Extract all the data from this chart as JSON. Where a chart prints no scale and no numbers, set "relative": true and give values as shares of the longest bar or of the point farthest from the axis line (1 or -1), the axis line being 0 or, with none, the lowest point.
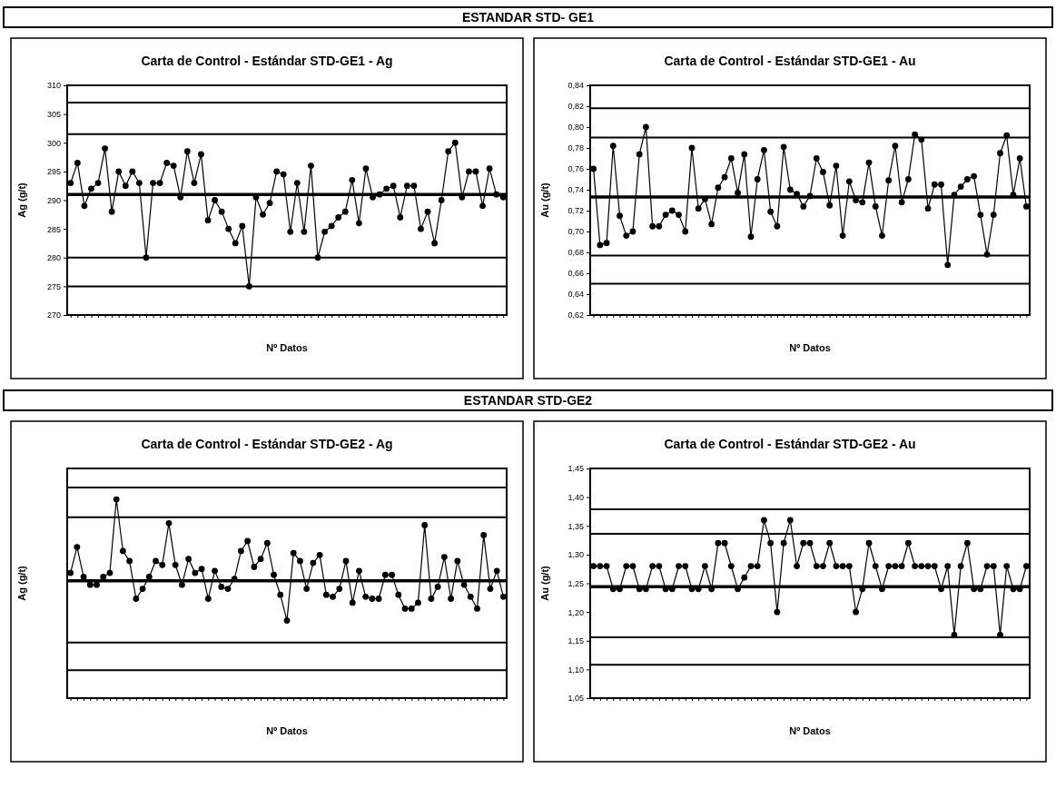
{
  "chart_data": [
    {
      "type": "line",
      "title": "Carta de Control  - Estándar STD-GE1  - Ag",
      "ylabel": "Ag (g/t)",
      "xlabel": "Nº Datos",
      "annotations": [
        "ESTANDAR STD- GE1"
      ],
      "marker": "circle",
      "line_style": "solid",
      "categories": [
        null,
        null,
        null,
        null,
        null,
        null,
        null,
        null,
        null,
        null,
        null,
        null,
        null,
        null,
        null,
        null,
        null,
        null,
        null,
        null,
        null,
        null,
        null,
        null,
        null,
        null,
        null,
        null,
        null,
        null,
        null,
        null,
        null,
        null,
        null,
        null,
        null,
        null,
        null,
        null,
        null,
        null,
        null,
        null,
        null,
        null,
        null,
        null,
        null,
        null,
        null,
        null,
        null,
        null,
        null,
        null,
        null,
        null,
        null,
        null,
        null,
        null,
        null,
        null
      ],
      "series": [
        {
          "color": "#000000",
          "values": [
            293,
            296.5,
            289,
            292,
            293,
            299,
            288,
            295,
            292.5,
            295,
            293,
            280,
            293,
            293,
            296.5,
            296,
            290.5,
            298.5,
            293,
            298,
            286.5,
            290,
            288,
            285,
            282.5,
            285.5,
            275,
            290.5,
            287.5,
            289.5,
            295,
            294.5,
            284.5,
            293,
            284.5,
            296,
            280,
            284.5,
            285.5,
            287,
            288,
            293.5,
            286,
            295.5,
            290.5,
            291,
            292,
            292.5,
            287,
            292.5,
            292.5,
            285,
            288,
            282.5,
            290,
            298.5,
            300,
            290.5,
            295,
            295,
            289,
            295.5,
            291,
            290.5
          ]
        }
      ],
      "ylim": [
        270,
        310
      ],
      "yticks": [
        270,
        275,
        280,
        285,
        290,
        295,
        300,
        305,
        310
      ],
      "ref_lines": [
        {
          "axis": "y",
          "value": 307,
          "color": "#000000"
        },
        {
          "axis": "y",
          "value": 301.5,
          "color": "#000000"
        },
        {
          "axis": "y",
          "value": 291,
          "color": "#000000"
        },
        {
          "axis": "y",
          "value": 280,
          "color": "#000000"
        },
        {
          "axis": "y",
          "value": 275,
          "color": "#000000"
        }
      ]
    },
    {
      "type": "line",
      "title": "Carta de Control - Estándar STD-GE1  - Au",
      "ylabel": "Au (g/t)",
      "xlabel": "Nº Datos",
      "marker": "circle",
      "line_style": "solid",
      "categories": [
        null,
        null,
        null,
        null,
        null,
        null,
        null,
        null,
        null,
        null,
        null,
        null,
        null,
        null,
        null,
        null,
        null,
        null,
        null,
        null,
        null,
        null,
        null,
        null,
        null,
        null,
        null,
        null,
        null,
        null,
        null,
        null,
        null,
        null,
        null,
        null,
        null,
        null,
        null,
        null,
        null,
        null,
        null,
        null,
        null,
        null,
        null,
        null,
        null,
        null,
        null,
        null,
        null,
        null,
        null,
        null,
        null,
        null,
        null,
        null,
        null,
        null,
        null,
        null,
        null,
        null,
        null
      ],
      "series": [
        {
          "color": "#000000",
          "values": [
            0.76,
            0.687,
            0.689,
            0.782,
            0.715,
            0.696,
            0.7,
            0.774,
            0.8,
            0.705,
            0.705,
            0.716,
            0.72,
            0.716,
            0.7,
            0.78,
            0.722,
            0.731,
            0.707,
            0.742,
            0.752,
            0.77,
            0.737,
            0.774,
            0.695,
            0.75,
            0.778,
            0.719,
            0.705,
            0.781,
            0.74,
            0.736,
            0.724,
            0.734,
            0.77,
            0.757,
            0.725,
            0.763,
            0.696,
            0.748,
            0.73,
            0.728,
            0.766,
            0.724,
            0.696,
            0.749,
            0.782,
            0.728,
            0.75,
            0.793,
            0.788,
            0.722,
            0.745,
            0.745,
            0.668,
            0.735,
            0.743,
            0.75,
            0.753,
            0.716,
            0.678,
            0.716,
            0.775,
            0.792,
            0.735,
            0.77,
            0.724
          ]
        }
      ],
      "ylim": [
        0.62,
        0.84
      ],
      "yticks": [
        {
          "value": 0.62,
          "label": "0,62"
        },
        {
          "value": 0.64,
          "label": "0,64"
        },
        {
          "value": 0.66,
          "label": "0,66"
        },
        {
          "value": 0.68,
          "label": "0,68"
        },
        {
          "value": 0.7,
          "label": "0,70"
        },
        {
          "value": 0.72,
          "label": "0,72"
        },
        {
          "value": 0.74,
          "label": "0,74"
        },
        {
          "value": 0.76,
          "label": "0,76"
        },
        {
          "value": 0.78,
          "label": "0,78"
        },
        {
          "value": 0.8,
          "label": "0,80"
        },
        {
          "value": 0.82,
          "label": "0,82"
        },
        {
          "value": 0.84,
          "label": "0,84"
        }
      ],
      "ref_lines": [
        {
          "axis": "y",
          "value": 0.818,
          "color": "#000000"
        },
        {
          "axis": "y",
          "value": 0.79,
          "color": "#000000"
        },
        {
          "axis": "y",
          "value": 0.733,
          "color": "#000000"
        },
        {
          "axis": "y",
          "value": 0.677,
          "color": "#000000"
        },
        {
          "axis": "y",
          "value": 0.65,
          "color": "#000000"
        }
      ]
    },
    {
      "type": "line",
      "title": "Carta de Control - Estándar STD-GE2 - Ag",
      "ylabel": "Ag (g/t)",
      "xlabel": "Nº Datos",
      "annotations": [
        "ESTANDAR STD-GE2"
      ],
      "marker": "circle",
      "line_style": "solid",
      "relative": true,
      "categories": [
        null,
        null,
        null,
        null,
        null,
        null,
        null,
        null,
        null,
        null,
        null,
        null,
        null,
        null,
        null,
        null,
        null,
        null,
        null,
        null,
        null,
        null,
        null,
        null,
        null,
        null,
        null,
        null,
        null,
        null,
        null,
        null,
        null,
        null,
        null,
        null,
        null,
        null,
        null,
        null,
        null,
        null,
        null,
        null,
        null,
        null,
        null,
        null,
        null,
        null,
        null,
        null,
        null,
        null,
        null,
        null,
        null,
        null,
        null,
        null,
        null,
        null,
        null,
        null,
        null,
        null,
        null
      ],
      "series": [
        {
          "color": "#000000",
          "values": [
            0.63,
            0.76,
            0.61,
            0.57,
            0.57,
            0.61,
            0.63,
            1,
            0.74,
            0.69,
            0.5,
            0.55,
            0.61,
            0.69,
            0.67,
            0.88,
            0.67,
            0.57,
            0.7,
            0.63,
            0.65,
            0.5,
            0.64,
            0.56,
            0.55,
            0.6,
            0.74,
            0.79,
            0.66,
            0.7,
            0.78,
            0.62,
            0.52,
            0.39,
            0.73,
            0.69,
            0.55,
            0.68,
            0.72,
            0.52,
            0.51,
            0.55,
            0.69,
            0.48,
            0.64,
            0.51,
            0.5,
            0.5,
            0.62,
            0.62,
            0.52,
            0.45,
            0.45,
            0.48,
            0.87,
            0.5,
            0.56,
            0.71,
            0.5,
            0.69,
            0.57,
            0.51,
            0.45,
            0.82,
            0.55,
            0.64,
            0.51
          ]
        }
      ],
      "ref_lines": [
        {
          "axis": "y",
          "value": 1.06,
          "color": "#000000"
        },
        {
          "axis": "y",
          "value": 0.91,
          "color": "#000000"
        },
        {
          "axis": "y",
          "value": 0.59,
          "color": "#000000"
        },
        {
          "axis": "y",
          "value": 0.28,
          "color": "#000000"
        },
        {
          "axis": "y",
          "value": 0.14,
          "color": "#000000"
        }
      ]
    },
    {
      "type": "line",
      "title": "Carta de Control - Estándar STD-GE2 - Au",
      "ylabel": "Au (g/t)",
      "xlabel": "Nº Datos",
      "marker": "circle",
      "line_style": "solid",
      "categories": [
        null,
        null,
        null,
        null,
        null,
        null,
        null,
        null,
        null,
        null,
        null,
        null,
        null,
        null,
        null,
        null,
        null,
        null,
        null,
        null,
        null,
        null,
        null,
        null,
        null,
        null,
        null,
        null,
        null,
        null,
        null,
        null,
        null,
        null,
        null,
        null,
        null,
        null,
        null,
        null,
        null,
        null,
        null,
        null,
        null,
        null,
        null,
        null,
        null,
        null,
        null,
        null,
        null,
        null,
        null,
        null,
        null,
        null,
        null,
        null,
        null,
        null,
        null,
        null,
        null,
        null,
        null
      ],
      "series": [
        {
          "color": "#000000",
          "values": [
            1.28,
            1.28,
            1.28,
            1.24,
            1.24,
            1.28,
            1.28,
            1.24,
            1.24,
            1.28,
            1.28,
            1.24,
            1.24,
            1.28,
            1.28,
            1.24,
            1.24,
            1.28,
            1.24,
            1.32,
            1.32,
            1.28,
            1.24,
            1.26,
            1.28,
            1.28,
            1.36,
            1.32,
            1.2,
            1.32,
            1.36,
            1.28,
            1.32,
            1.32,
            1.28,
            1.28,
            1.32,
            1.28,
            1.28,
            1.28,
            1.2,
            1.24,
            1.32,
            1.28,
            1.24,
            1.28,
            1.28,
            1.28,
            1.32,
            1.28,
            1.28,
            1.28,
            1.28,
            1.24,
            1.28,
            1.16,
            1.28,
            1.32,
            1.24,
            1.24,
            1.28,
            1.28,
            1.16,
            1.28,
            1.24,
            1.24,
            1.28
          ]
        }
      ],
      "ylim": [
        1.05,
        1.45
      ],
      "yticks": [
        {
          "value": 1.05,
          "label": "1,05"
        },
        {
          "value": 1.1,
          "label": "1,10"
        },
        {
          "value": 1.15,
          "label": "1,15"
        },
        {
          "value": 1.2,
          "label": "1,20"
        },
        {
          "value": 1.25,
          "label": "1,25"
        },
        {
          "value": 1.3,
          "label": "1,30"
        },
        {
          "value": 1.35,
          "label": "1,35"
        },
        {
          "value": 1.4,
          "label": "1,40"
        },
        {
          "value": 1.45,
          "label": "1,45"
        }
      ],
      "ref_lines": [
        {
          "axis": "y",
          "value": 1.379,
          "color": "#000000"
        },
        {
          "axis": "y",
          "value": 1.336,
          "color": "#000000"
        },
        {
          "axis": "y",
          "value": 1.244,
          "color": "#000000"
        },
        {
          "axis": "y",
          "value": 1.156,
          "color": "#000000"
        },
        {
          "axis": "y",
          "value": 1.108,
          "color": "#000000"
        }
      ]
    }
  ]
}
